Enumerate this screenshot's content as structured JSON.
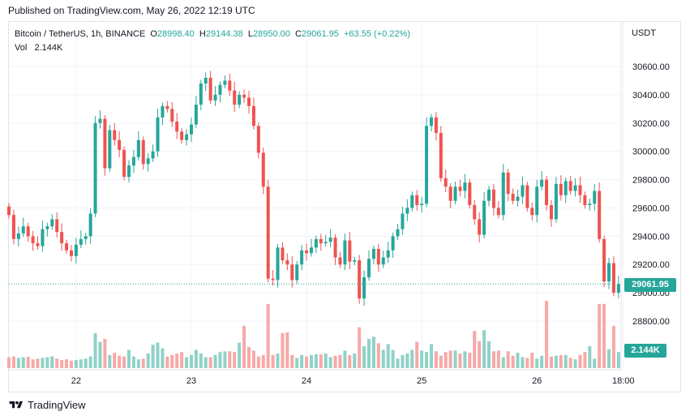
{
  "header": {
    "published": "Published on TradingView.com, May 26, 2022 12:19 UTC"
  },
  "legend": {
    "symbol": "Bitcoin / TetherUS, 1h, BINANCE",
    "open_label": "O",
    "open": "28998.40",
    "high_label": "H",
    "high": "29144.38",
    "low_label": "L",
    "low": "28950.00",
    "close_label": "C",
    "close": "29061.95",
    "change": "+63.55 (+0.22%)",
    "vol_label": "Vol",
    "vol": "2.144K"
  },
  "price_axis": {
    "currency": "USDT",
    "last_price": "29061.95",
    "last_volume": "2.144K"
  },
  "footer": {
    "brand": "TradingView",
    "logo_icon": "tradingview-logo-icon"
  },
  "colors": {
    "up": "#26a69a",
    "down": "#ef5350",
    "up_vol": "#8fd2c8",
    "down_vol": "#f7a9a7",
    "grid": "#f0f3fa"
  },
  "chart_data": {
    "type": "candlestick",
    "title": "Bitcoin / TetherUS, 1h, BINANCE",
    "ylim": [
      28700,
      30720
    ],
    "y_ticks": [
      28800,
      29000,
      29200,
      29400,
      29600,
      29800,
      30000,
      30200,
      30400,
      30600
    ],
    "y_tick_labels": [
      "28800.00",
      "29000.00",
      "29200.00",
      "29400.00",
      "29600.00",
      "29800.00",
      "30000.00",
      "30200.00",
      "30400.00",
      "30600.00"
    ],
    "x_tick_labels": [
      "22",
      "23",
      "24",
      "25",
      "26",
      "18:00"
    ],
    "x_ticks_hours": [
      14,
      38,
      62,
      86,
      110,
      128
    ],
    "start": "May 21, 2022 10:00 UTC",
    "interval": "1h",
    "grid": true,
    "last_price": 29061.95,
    "closes": [
      29550,
      29380,
      29420,
      29470,
      29400,
      29350,
      29330,
      29450,
      29470,
      29520,
      29430,
      29350,
      29300,
      29260,
      29340,
      29380,
      29400,
      29560,
      30200,
      30230,
      29880,
      30150,
      30080,
      30010,
      29820,
      29900,
      29960,
      30080,
      29910,
      29950,
      30000,
      30240,
      30320,
      30300,
      30210,
      30140,
      30080,
      30120,
      30190,
      30330,
      30480,
      30520,
      30360,
      30400,
      30470,
      30500,
      30430,
      30330,
      30400,
      30380,
      30320,
      30180,
      29990,
      29750,
      29100,
      29090,
      29320,
      29230,
      29200,
      29090,
      29200,
      29300,
      29280,
      29320,
      29380,
      29350,
      29360,
      29390,
      29250,
      29200,
      29370,
      29220,
      29230,
      28960,
      29110,
      29240,
      29310,
      29200,
      29250,
      29300,
      29400,
      29450,
      29560,
      29600,
      29690,
      29620,
      29630,
      30180,
      30240,
      30130,
      29810,
      29750,
      29650,
      29750,
      29720,
      29780,
      29620,
      29520,
      29410,
      29650,
      29730,
      29600,
      29550,
      29850,
      29700,
      29650,
      29680,
      29760,
      29600,
      29550,
      29750,
      29800,
      29620,
      29520,
      29770,
      29690,
      29790,
      29720,
      29760,
      29690,
      29620,
      29630,
      29720,
      29380,
      29080,
      29210,
      29000,
      29060
    ],
    "volumes": [
      150,
      160,
      140,
      150,
      155,
      120,
      130,
      140,
      150,
      160,
      130,
      110,
      120,
      100,
      110,
      120,
      130,
      160,
      480,
      360,
      400,
      180,
      210,
      170,
      160,
      250,
      160,
      120,
      130,
      200,
      320,
      350,
      270,
      160,
      180,
      200,
      220,
      150,
      180,
      250,
      200,
      150,
      150,
      180,
      220,
      230,
      230,
      220,
      350,
      580,
      290,
      240,
      160,
      180,
      880,
      180,
      200,
      480,
      490,
      180,
      140,
      180,
      160,
      180,
      190,
      190,
      200,
      150,
      170,
      180,
      240,
      180,
      200,
      560,
      300,
      400,
      430,
      340,
      250,
      330,
      250,
      130,
      180,
      200,
      250,
      360,
      240,
      220,
      330,
      230,
      170,
      220,
      240,
      240,
      200,
      230,
      210,
      510,
      370,
      520,
      370,
      230,
      240,
      150,
      230,
      170,
      210,
      150,
      140,
      210,
      130,
      170,
      920,
      160,
      170,
      180,
      180,
      140,
      120,
      180,
      220,
      300,
      130,
      880,
      880,
      260,
      580,
      220
    ]
  }
}
